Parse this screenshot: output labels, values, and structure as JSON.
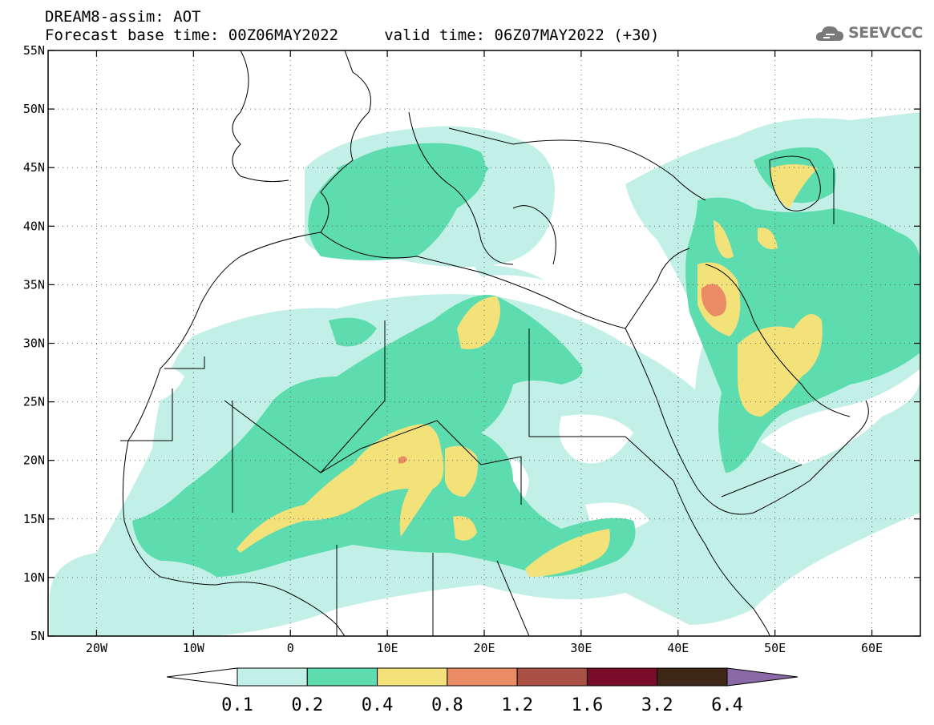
{
  "header": {
    "line1": "DREAM8-assim: AOT",
    "line2": "Forecast base time: 00Z06MAY2022     valid time: 06Z07MAY2022 (+30)"
  },
  "logo": {
    "text": "SEEVCCC",
    "icon": "cloud-logo-icon"
  },
  "map": {
    "lon_range": [
      -25,
      65
    ],
    "lat_range": [
      5,
      55
    ],
    "lon_ticks": [
      {
        "value": -20,
        "label": "20W"
      },
      {
        "value": -10,
        "label": "10W"
      },
      {
        "value": 0,
        "label": "0"
      },
      {
        "value": 10,
        "label": "10E"
      },
      {
        "value": 20,
        "label": "20E"
      },
      {
        "value": 30,
        "label": "30E"
      },
      {
        "value": 40,
        "label": "40E"
      },
      {
        "value": 50,
        "label": "50E"
      },
      {
        "value": 60,
        "label": "60E"
      }
    ],
    "lat_ticks": [
      {
        "value": 5,
        "label": "5N"
      },
      {
        "value": 10,
        "label": "10N"
      },
      {
        "value": 15,
        "label": "15N"
      },
      {
        "value": 20,
        "label": "20N"
      },
      {
        "value": 25,
        "label": "25N"
      },
      {
        "value": 30,
        "label": "30N"
      },
      {
        "value": 35,
        "label": "35N"
      },
      {
        "value": 40,
        "label": "40N"
      },
      {
        "value": 45,
        "label": "45N"
      },
      {
        "value": 50,
        "label": "50N"
      },
      {
        "value": 55,
        "label": "55N"
      }
    ],
    "grid": "dotted"
  },
  "colorbar": {
    "colors": [
      "#ffffff",
      "#c3f0e6",
      "#5ddcaf",
      "#f3e27a",
      "#e98c66",
      "#aa5045",
      "#7a0c2a",
      "#3e2716",
      "#8a69a6"
    ],
    "labels": [
      "0.1",
      "0.2",
      "0.4",
      "0.8",
      "1.2",
      "1.6",
      "3.2",
      "6.4"
    ]
  }
}
